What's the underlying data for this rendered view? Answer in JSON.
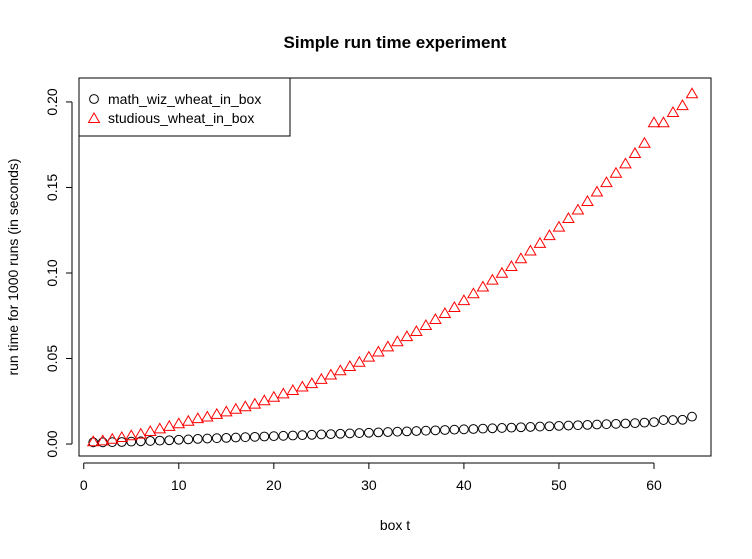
{
  "chart_data": {
    "type": "scatter",
    "title": "Simple run time experiment",
    "xlabel": "box t",
    "ylabel": "run time for 1000 runs (in seconds)",
    "xlim": [
      -0.5,
      66
    ],
    "ylim": [
      -0.007,
      0.214
    ],
    "xticks": [
      0,
      10,
      20,
      30,
      40,
      50,
      60
    ],
    "yticks": [
      0.0,
      0.05,
      0.1,
      0.15,
      0.2
    ],
    "ytick_labels": [
      "0.00",
      "0.05",
      "0.10",
      "0.15",
      "0.20"
    ],
    "grid": false,
    "legend_position": "top-left",
    "x": [
      1,
      2,
      3,
      4,
      5,
      6,
      7,
      8,
      9,
      10,
      11,
      12,
      13,
      14,
      15,
      16,
      17,
      18,
      19,
      20,
      21,
      22,
      23,
      24,
      25,
      26,
      27,
      28,
      29,
      30,
      31,
      32,
      33,
      34,
      35,
      36,
      37,
      38,
      39,
      40,
      41,
      42,
      43,
      44,
      45,
      46,
      47,
      48,
      49,
      50,
      51,
      52,
      53,
      54,
      55,
      56,
      57,
      58,
      59,
      60,
      61,
      62,
      63,
      64
    ],
    "series": [
      {
        "name": "math_wiz_wheat_in_box",
        "marker": "circle",
        "color": "#000000",
        "values": [
          0.001,
          0.001,
          0.0011,
          0.0012,
          0.0014,
          0.0016,
          0.0018,
          0.002,
          0.0022,
          0.0025,
          0.0027,
          0.003,
          0.0032,
          0.0034,
          0.0036,
          0.0038,
          0.004,
          0.0042,
          0.0044,
          0.0046,
          0.0048,
          0.005,
          0.0052,
          0.0054,
          0.0056,
          0.0058,
          0.006,
          0.0062,
          0.0064,
          0.0066,
          0.0068,
          0.007,
          0.0072,
          0.0074,
          0.0076,
          0.0078,
          0.008,
          0.0082,
          0.0084,
          0.0086,
          0.0088,
          0.009,
          0.0092,
          0.0094,
          0.0096,
          0.0098,
          0.01,
          0.0102,
          0.0104,
          0.0106,
          0.0108,
          0.011,
          0.0112,
          0.0114,
          0.0116,
          0.0118,
          0.012,
          0.0122,
          0.0125,
          0.0128,
          0.014,
          0.014,
          0.0142,
          0.016
        ]
      },
      {
        "name": "studious_wheat_in_box",
        "marker": "triangle",
        "color": "#ff0000",
        "values": [
          0.0015,
          0.002,
          0.003,
          0.004,
          0.005,
          0.006,
          0.0075,
          0.009,
          0.0105,
          0.012,
          0.0135,
          0.015,
          0.016,
          0.0175,
          0.019,
          0.0205,
          0.022,
          0.0235,
          0.0255,
          0.0275,
          0.0295,
          0.0315,
          0.0335,
          0.0355,
          0.038,
          0.0405,
          0.043,
          0.0455,
          0.048,
          0.051,
          0.054,
          0.057,
          0.06,
          0.063,
          0.066,
          0.0695,
          0.073,
          0.0765,
          0.08,
          0.084,
          0.088,
          0.092,
          0.096,
          0.1,
          0.104,
          0.1085,
          0.113,
          0.1175,
          0.122,
          0.127,
          0.132,
          0.137,
          0.142,
          0.1475,
          0.153,
          0.1585,
          0.164,
          0.17,
          0.176,
          0.188,
          0.188,
          0.194,
          0.198,
          0.205
        ]
      }
    ]
  }
}
